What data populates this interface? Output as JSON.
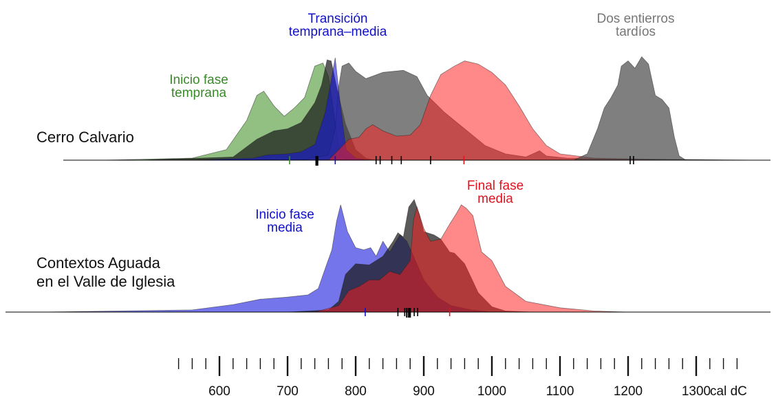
{
  "chart_data": {
    "type": "area",
    "x_axis": {
      "unit_label": "cal dC",
      "range": [
        340,
        1390
      ],
      "ticks": [
        600,
        700,
        800,
        900,
        1000,
        1100,
        1200,
        1300
      ],
      "tick_labels": [
        "600",
        "700",
        "800",
        "900",
        "1000",
        "1100",
        "1200",
        "1300"
      ],
      "minor_step": 20
    },
    "colors": {
      "green": "#3a8a2a",
      "blue": "#1010cc",
      "red": "#e0141e",
      "gray": "#777777",
      "black": "#000000"
    },
    "panels": [
      {
        "label": "Cerro Calvario",
        "annotations": [
          {
            "text": "Inicio fase\ntemprana",
            "color": "green"
          },
          {
            "text": "Transición\ntemprana–media",
            "color": "blue"
          },
          {
            "text": "Dos entierros\ntardíos",
            "color": "gray"
          }
        ],
        "series": [
          {
            "color": "green",
            "points": [
              [
                430,
                0
              ],
              [
                560,
                0.02
              ],
              [
                610,
                0.1
              ],
              [
                640,
                0.38
              ],
              [
                655,
                0.62
              ],
              [
                665,
                0.66
              ],
              [
                680,
                0.52
              ],
              [
                695,
                0.42
              ],
              [
                710,
                0.5
              ],
              [
                725,
                0.6
              ],
              [
                740,
                0.9
              ],
              [
                752,
                0.93
              ],
              [
                760,
                0.8
              ],
              [
                768,
                0.45
              ],
              [
                775,
                0.12
              ],
              [
                785,
                0.02
              ],
              [
                800,
                0
              ]
            ]
          },
          {
            "color": "black",
            "points": [
              [
                480,
                0
              ],
              [
                620,
                0.03
              ],
              [
                655,
                0.2
              ],
              [
                680,
                0.28
              ],
              [
                700,
                0.3
              ],
              [
                720,
                0.36
              ],
              [
                740,
                0.55
              ],
              [
                750,
                0.72
              ],
              [
                758,
                0.96
              ],
              [
                764,
                0.95
              ],
              [
                772,
                0.7
              ],
              [
                785,
                0.35
              ],
              [
                800,
                0.1
              ],
              [
                815,
                0.02
              ],
              [
                830,
                0
              ]
            ]
          },
          {
            "color": "gray",
            "points": [
              [
                720,
                0
              ],
              [
                760,
                0.05
              ],
              [
                770,
                0.3
              ],
              [
                775,
                0.7
              ],
              [
                780,
                0.9
              ],
              [
                790,
                0.93
              ],
              [
                800,
                0.85
              ],
              [
                815,
                0.78
              ],
              [
                840,
                0.84
              ],
              [
                870,
                0.86
              ],
              [
                890,
                0.8
              ],
              [
                905,
                0.62
              ],
              [
                930,
                0.46
              ],
              [
                960,
                0.3
              ],
              [
                990,
                0.14
              ],
              [
                1020,
                0.06
              ],
              [
                1050,
                0.03
              ],
              [
                1060,
                0.06
              ],
              [
                1070,
                0.09
              ],
              [
                1080,
                0.04
              ],
              [
                1110,
                0.02
              ],
              [
                1240,
                0.01
              ],
              [
                1390,
                0
              ]
            ]
          },
          {
            "color": "blue",
            "points": [
              [
                560,
                0
              ],
              [
                650,
                0.02
              ],
              [
                670,
                0.05
              ],
              [
                700,
                0.06
              ],
              [
                720,
                0.08
              ],
              [
                740,
                0.15
              ],
              [
                755,
                0.45
              ],
              [
                763,
                0.73
              ],
              [
                770,
                0.98
              ],
              [
                778,
                0.5
              ],
              [
                786,
                0.1
              ],
              [
                800,
                0.02
              ],
              [
                820,
                0
              ]
            ]
          },
          {
            "color": "red",
            "points": [
              [
                760,
                0
              ],
              [
                775,
                0.1
              ],
              [
                790,
                0.2
              ],
              [
                805,
                0.22
              ],
              [
                815,
                0.3
              ],
              [
                825,
                0.34
              ],
              [
                840,
                0.28
              ],
              [
                860,
                0.23
              ],
              [
                880,
                0.24
              ],
              [
                895,
                0.34
              ],
              [
                910,
                0.62
              ],
              [
                925,
                0.82
              ],
              [
                945,
                0.9
              ],
              [
                960,
                0.95
              ],
              [
                980,
                0.92
              ],
              [
                1000,
                0.84
              ],
              [
                1020,
                0.72
              ],
              [
                1040,
                0.52
              ],
              [
                1060,
                0.3
              ],
              [
                1080,
                0.14
              ],
              [
                1100,
                0.06
              ],
              [
                1150,
                0.02
              ],
              [
                1260,
                0
              ]
            ]
          },
          {
            "color": "gray",
            "points": [
              [
                1120,
                0
              ],
              [
                1140,
                0.06
              ],
              [
                1155,
                0.3
              ],
              [
                1165,
                0.5
              ],
              [
                1175,
                0.6
              ],
              [
                1185,
                0.72
              ],
              [
                1190,
                0.9
              ],
              [
                1200,
                0.95
              ],
              [
                1210,
                0.88
              ],
              [
                1220,
                0.99
              ],
              [
                1230,
                0.92
              ],
              [
                1240,
                0.62
              ],
              [
                1250,
                0.58
              ],
              [
                1260,
                0.5
              ],
              [
                1268,
                0.22
              ],
              [
                1275,
                0.04
              ],
              [
                1285,
                0
              ]
            ]
          }
        ],
        "rug": [
          {
            "x": 703,
            "color": "green",
            "tall": false
          },
          {
            "x": 742,
            "color": "black",
            "tall": true
          },
          {
            "x": 744,
            "color": "black",
            "tall": true
          },
          {
            "x": 770,
            "color": "blue",
            "tall": false
          },
          {
            "x": 830,
            "color": "black",
            "tall": false
          },
          {
            "x": 836,
            "color": "black",
            "tall": false
          },
          {
            "x": 853,
            "color": "black",
            "tall": false
          },
          {
            "x": 867,
            "color": "black",
            "tall": false
          },
          {
            "x": 910,
            "color": "black",
            "tall": false
          },
          {
            "x": 959,
            "color": "red",
            "tall": false
          },
          {
            "x": 1203,
            "color": "black",
            "tall": false
          },
          {
            "x": 1208,
            "color": "black",
            "tall": false
          }
        ]
      },
      {
        "label": "Contextos Aguada\nen el Valle de Iglesia",
        "annotations": [
          {
            "text": "Inicio fase\nmedia",
            "color": "blue"
          },
          {
            "text": "Final fase\nmedia",
            "color": "red"
          }
        ],
        "series": [
          {
            "color": "blue",
            "points": [
              [
                340,
                0
              ],
              [
                560,
                0.02
              ],
              [
                620,
                0.07
              ],
              [
                660,
                0.12
              ],
              [
                700,
                0.14
              ],
              [
                730,
                0.16
              ],
              [
                745,
                0.22
              ],
              [
                755,
                0.4
              ],
              [
                765,
                0.58
              ],
              [
                772,
                0.85
              ],
              [
                778,
                1.0
              ],
              [
                788,
                0.75
              ],
              [
                800,
                0.6
              ],
              [
                812,
                0.58
              ],
              [
                822,
                0.6
              ],
              [
                830,
                0.52
              ],
              [
                840,
                0.66
              ],
              [
                850,
                0.56
              ],
              [
                865,
                0.72
              ],
              [
                875,
                0.66
              ],
              [
                885,
                0.52
              ],
              [
                900,
                0.3
              ],
              [
                920,
                0.14
              ],
              [
                940,
                0.06
              ],
              [
                970,
                0.02
              ],
              [
                1000,
                0
              ]
            ]
          },
          {
            "color": "black",
            "points": [
              [
                700,
                0
              ],
              [
                760,
                0.02
              ],
              [
                775,
                0.1
              ],
              [
                785,
                0.35
              ],
              [
                800,
                0.45
              ],
              [
                820,
                0.44
              ],
              [
                840,
                0.52
              ],
              [
                855,
                0.66
              ],
              [
                862,
                0.74
              ],
              [
                870,
                0.7
              ],
              [
                878,
                0.98
              ],
              [
                886,
                1.05
              ],
              [
                894,
                0.9
              ],
              [
                900,
                0.75
              ],
              [
                915,
                0.72
              ],
              [
                925,
                0.68
              ],
              [
                938,
                0.56
              ],
              [
                945,
                0.55
              ],
              [
                960,
                0.45
              ],
              [
                980,
                0.18
              ],
              [
                1000,
                0.05
              ],
              [
                1020,
                0.01
              ],
              [
                1060,
                0
              ]
            ]
          },
          {
            "color": "red",
            "points": [
              [
                740,
                0
              ],
              [
                775,
                0.06
              ],
              [
                790,
                0.2
              ],
              [
                805,
                0.24
              ],
              [
                820,
                0.3
              ],
              [
                835,
                0.3
              ],
              [
                850,
                0.38
              ],
              [
                865,
                0.35
              ],
              [
                880,
                0.48
              ],
              [
                885,
                0.86
              ],
              [
                890,
                0.98
              ],
              [
                900,
                0.78
              ],
              [
                910,
                0.66
              ],
              [
                925,
                0.68
              ],
              [
                938,
                0.82
              ],
              [
                948,
                0.92
              ],
              [
                955,
                1.0
              ],
              [
                962,
                0.97
              ],
              [
                972,
                0.9
              ],
              [
                985,
                0.56
              ],
              [
                1000,
                0.48
              ],
              [
                1020,
                0.24
              ],
              [
                1050,
                0.1
              ],
              [
                1100,
                0.04
              ],
              [
                1150,
                0.01
              ],
              [
                1200,
                0
              ]
            ]
          }
        ],
        "rug": [
          {
            "x": 814,
            "color": "blue",
            "tall": false
          },
          {
            "x": 862,
            "color": "black",
            "tall": false
          },
          {
            "x": 872,
            "color": "black",
            "tall": false
          },
          {
            "x": 875,
            "color": "black",
            "tall": true
          },
          {
            "x": 878,
            "color": "black",
            "tall": true
          },
          {
            "x": 880,
            "color": "black",
            "tall": true
          },
          {
            "x": 886,
            "color": "black",
            "tall": false
          },
          {
            "x": 891,
            "color": "black",
            "tall": false
          },
          {
            "x": 938,
            "color": "red",
            "tall": false
          }
        ]
      }
    ]
  }
}
